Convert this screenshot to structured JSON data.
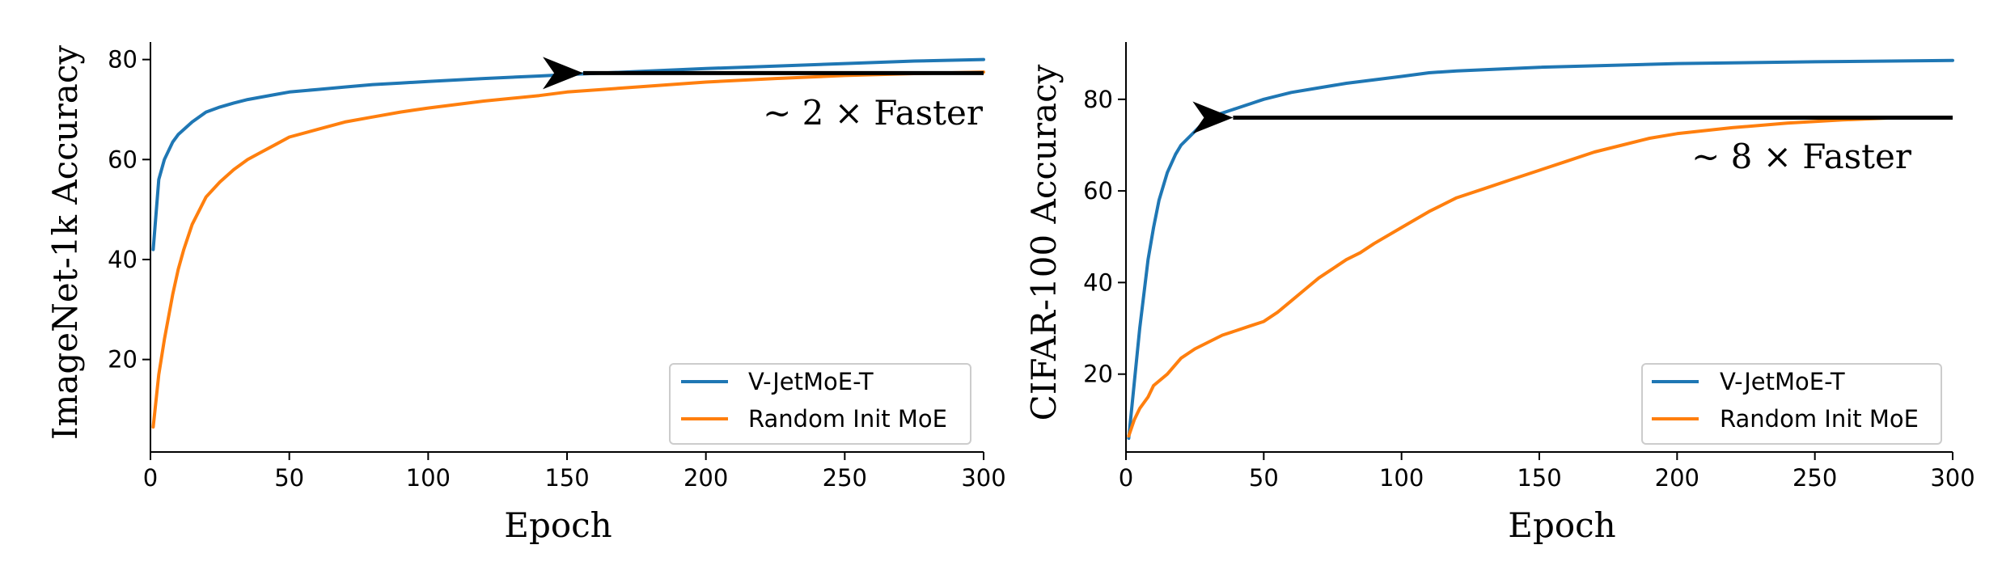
{
  "chart_data": [
    {
      "type": "line",
      "xlabel": "Epoch",
      "ylabel": "ImageNet-1k Accuracy",
      "xlim": [
        0,
        300
      ],
      "ylim": [
        1.5,
        83.5
      ],
      "xticks": [
        0,
        50,
        100,
        150,
        200,
        250,
        300
      ],
      "yticks": [
        20,
        40,
        60,
        80
      ],
      "grid": false,
      "legend_position": "lower-right",
      "annotation": {
        "text": "∼ 2 × Faster",
        "arrow_from": [
          300,
          77.3
        ],
        "arrow_to": [
          150,
          77.3
        ]
      },
      "series": [
        {
          "name": "V-JetMoE-T",
          "color": "#1f77b4",
          "x": [
            1,
            3,
            5,
            8,
            10,
            15,
            20,
            25,
            30,
            35,
            40,
            45,
            50,
            60,
            70,
            80,
            90,
            100,
            120,
            140,
            150,
            175,
            200,
            225,
            250,
            275,
            300
          ],
          "y": [
            42,
            56,
            60,
            63.5,
            65,
            67.5,
            69.5,
            70.5,
            71.3,
            72,
            72.5,
            73,
            73.5,
            74,
            74.5,
            75,
            75.3,
            75.6,
            76.2,
            76.7,
            77,
            77.6,
            78.2,
            78.7,
            79.2,
            79.7,
            80
          ]
        },
        {
          "name": "Random Init MoE",
          "color": "#ff7f0e",
          "x": [
            1,
            3,
            5,
            8,
            10,
            12,
            15,
            20,
            25,
            30,
            35,
            40,
            45,
            50,
            60,
            70,
            80,
            90,
            100,
            120,
            140,
            150,
            175,
            200,
            225,
            250,
            275,
            300
          ],
          "y": [
            6.5,
            17,
            24,
            33,
            38,
            42,
            47,
            52.5,
            55.5,
            58,
            60,
            61.5,
            63,
            64.5,
            66,
            67.5,
            68.5,
            69.5,
            70.3,
            71.7,
            72.8,
            73.5,
            74.5,
            75.5,
            76.2,
            76.8,
            77.2,
            77.5
          ]
        }
      ]
    },
    {
      "type": "line",
      "xlabel": "Epoch",
      "ylabel": "CIFAR-100 Accuracy",
      "xlim": [
        0,
        300
      ],
      "ylim": [
        3,
        92.5
      ],
      "xticks": [
        0,
        50,
        100,
        150,
        200,
        250,
        300
      ],
      "yticks": [
        20,
        40,
        60,
        80
      ],
      "grid": false,
      "legend_position": "lower-right",
      "annotation": {
        "text": "∼ 8 × Faster",
        "arrow_from": [
          300,
          76
        ],
        "arrow_to": [
          33,
          76
        ]
      },
      "series": [
        {
          "name": "V-JetMoE-T",
          "color": "#1f77b4",
          "x": [
            1,
            3,
            5,
            8,
            10,
            12,
            15,
            18,
            20,
            25,
            30,
            35,
            40,
            45,
            50,
            60,
            70,
            80,
            100,
            110,
            120,
            150,
            200,
            250,
            300
          ],
          "y": [
            6,
            18,
            30,
            45,
            52,
            58,
            64,
            68,
            70,
            73,
            76,
            77,
            78,
            79,
            80,
            81.5,
            82.5,
            83.5,
            85,
            85.8,
            86.2,
            87,
            87.8,
            88.2,
            88.5
          ]
        },
        {
          "name": "Random Init MoE",
          "color": "#ff7f0e",
          "x": [
            1,
            3,
            5,
            8,
            10,
            15,
            20,
            25,
            30,
            35,
            40,
            45,
            50,
            55,
            60,
            65,
            70,
            75,
            80,
            85,
            90,
            100,
            110,
            120,
            130,
            140,
            150,
            160,
            170,
            180,
            190,
            200,
            220,
            240,
            260,
            280
          ],
          "y": [
            6.5,
            10,
            12.5,
            15,
            17.5,
            20,
            23.5,
            25.5,
            27,
            28.5,
            29.5,
            30.5,
            31.5,
            33.5,
            36,
            38.5,
            41,
            43,
            45,
            46.5,
            48.5,
            52,
            55.5,
            58.5,
            60.5,
            62.5,
            64.5,
            66.5,
            68.5,
            70,
            71.5,
            72.5,
            73.8,
            74.8,
            75.5,
            76
          ]
        }
      ]
    }
  ]
}
